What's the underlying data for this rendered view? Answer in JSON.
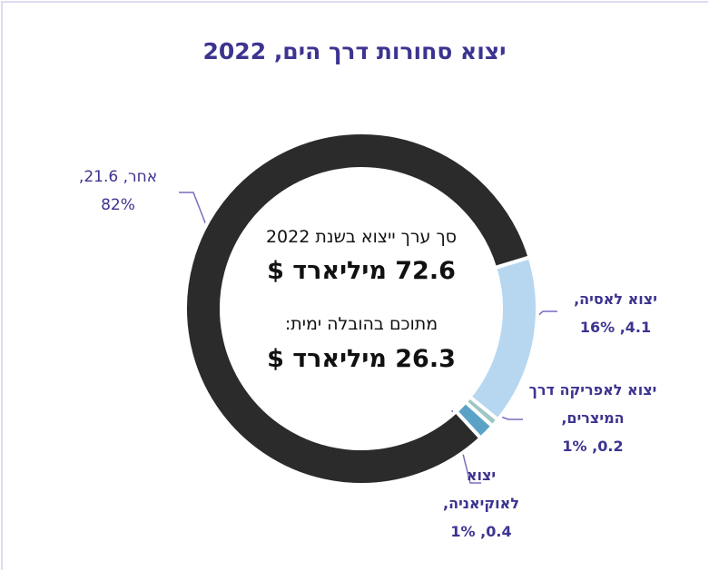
{
  "chart_data": {
    "type": "donut",
    "title": "יצוא סחורות דרך הים, 2022",
    "center_text": [
      "סך ערך ייצוא בשנת 2022",
      "72.6 מיליארד $",
      "מתוכם בהובלה ימית:",
      "26.3 מיליארד $"
    ],
    "categories": [
      "אחר,",
      "יצוא לאסיה,",
      "יצוא לאפריקה דרך המיצרים,",
      "יצוא לאוקיאניה,"
    ],
    "values": [
      21.6,
      4.1,
      0.2,
      0.4
    ],
    "value_labels": [
      "21.6,",
      "4.1,",
      "0.2,",
      "0.4,"
    ],
    "percentages": [
      82,
      16,
      1,
      1
    ],
    "percentage_labels": [
      "82%",
      "16%",
      "1%",
      "1%"
    ],
    "colors": [
      "#2b2b2b",
      "#b7d7f0",
      "#9cc7c4",
      "#5aa3c6"
    ]
  }
}
